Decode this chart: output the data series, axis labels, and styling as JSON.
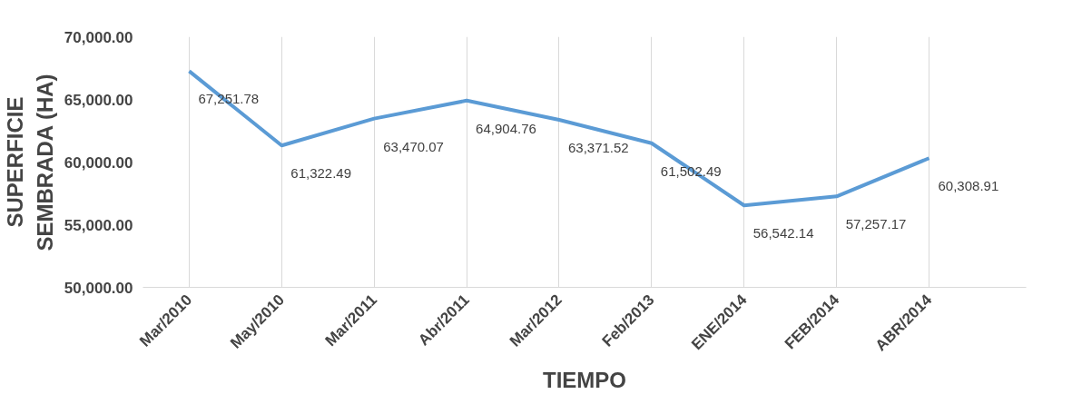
{
  "chart_data": {
    "type": "line",
    "xlabel": "TIEMPO",
    "ylabel": "SUPERFICIE SEMBRADA (HA)",
    "categories": [
      "Mar/2010",
      "May/2010",
      "Mar/2011",
      "Abr/2011",
      "Mar/2012",
      "Feb/2013",
      "ENE/2014",
      "FEB/2014",
      "ABR/2014"
    ],
    "series": [
      {
        "color": "#5b9bd5",
        "values": [
          67251.78,
          61322.49,
          63470.07,
          64904.76,
          63371.52,
          61502.49,
          56542.14,
          57257.17,
          60308.91
        ]
      }
    ],
    "ylim": [
      50000,
      70000
    ],
    "yticks": [
      {
        "value": 50000,
        "label": "50,000.00"
      },
      {
        "value": 55000,
        "label": "55,000.00"
      },
      {
        "value": 60000,
        "label": "60,000.00"
      },
      {
        "value": 65000,
        "label": "65,000.00"
      },
      {
        "value": 70000,
        "label": "70,000.00"
      }
    ],
    "value_labels": [
      "67,251.78",
      "61,322.49",
      "63,470.07",
      "64,904.76",
      "63,371.52",
      "61,502.49",
      "56,542.14",
      "57,257.17",
      "60,308.91"
    ],
    "grid": "x",
    "marker": "none",
    "line_style": "solid"
  }
}
